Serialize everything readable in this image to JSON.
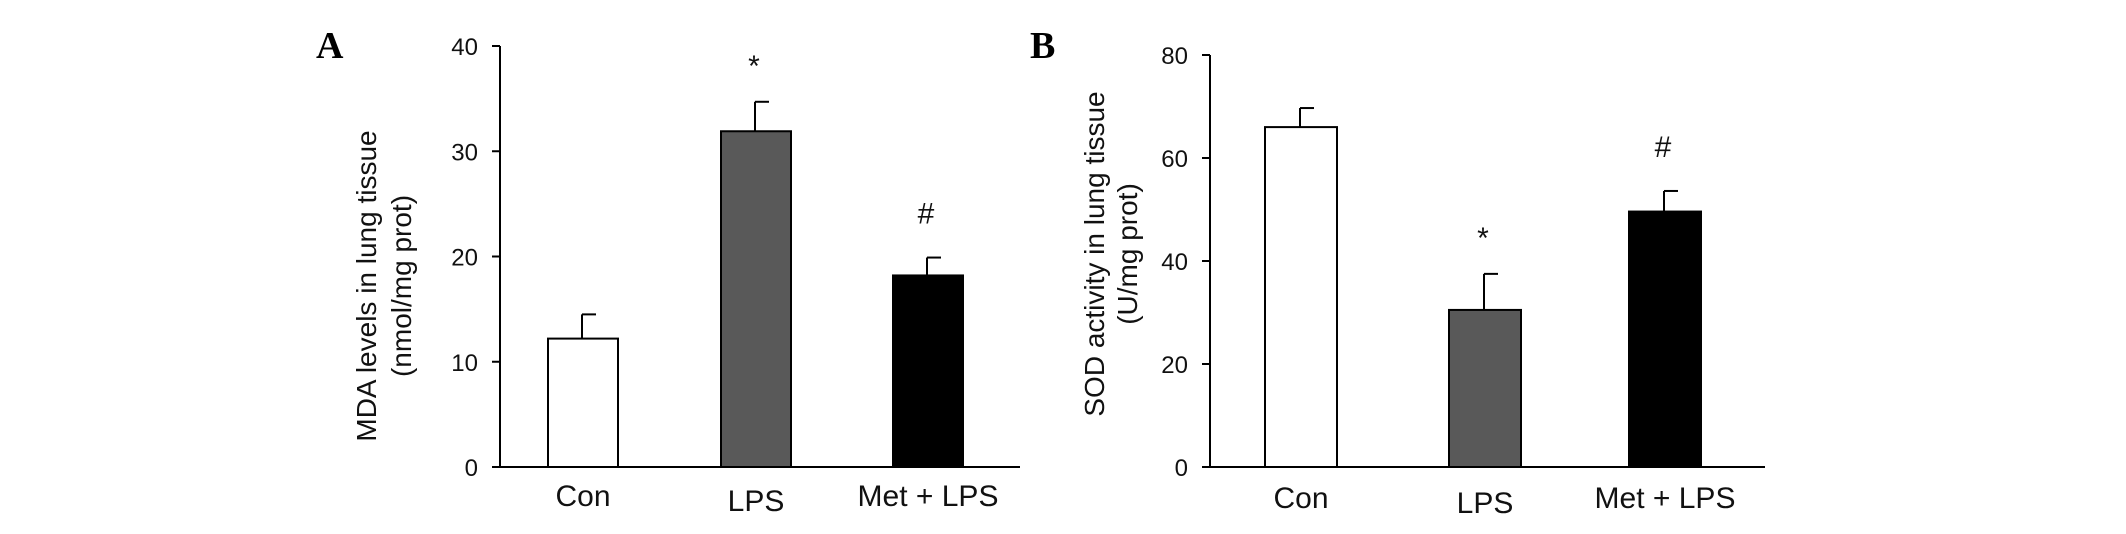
{
  "chart_data": [
    {
      "type": "bar",
      "panel_label": "A",
      "categories": [
        "Con",
        "LPS",
        "Met + LPS"
      ],
      "values": [
        12.2,
        31.9,
        18.2
      ],
      "errors": [
        2.3,
        2.8,
        1.7
      ],
      "significance": [
        "",
        "*",
        "#"
      ],
      "bar_colors": [
        "#ffffff",
        "#595959",
        "#000000"
      ],
      "ylabel_lines": [
        "MDA levels in lung tissue",
        "(nmol/mg prot)"
      ],
      "ylim": [
        0,
        40
      ],
      "yticks": [
        0,
        10,
        20,
        30,
        40
      ],
      "grid": false
    },
    {
      "type": "bar",
      "panel_label": "B",
      "categories": [
        "Con",
        "LPS",
        "Met + LPS"
      ],
      "values": [
        66.0,
        30.5,
        49.6
      ],
      "errors": [
        3.7,
        7.0,
        4.0
      ],
      "significance": [
        "",
        "*",
        "#"
      ],
      "bar_colors": [
        "#ffffff",
        "#595959",
        "#000000"
      ],
      "ylabel_lines": [
        "SOD activity in lung tissue",
        "(U/mg prot)"
      ],
      "ylim": [
        0,
        80
      ],
      "yticks": [
        0,
        20,
        40,
        60,
        80
      ],
      "grid": false
    }
  ]
}
